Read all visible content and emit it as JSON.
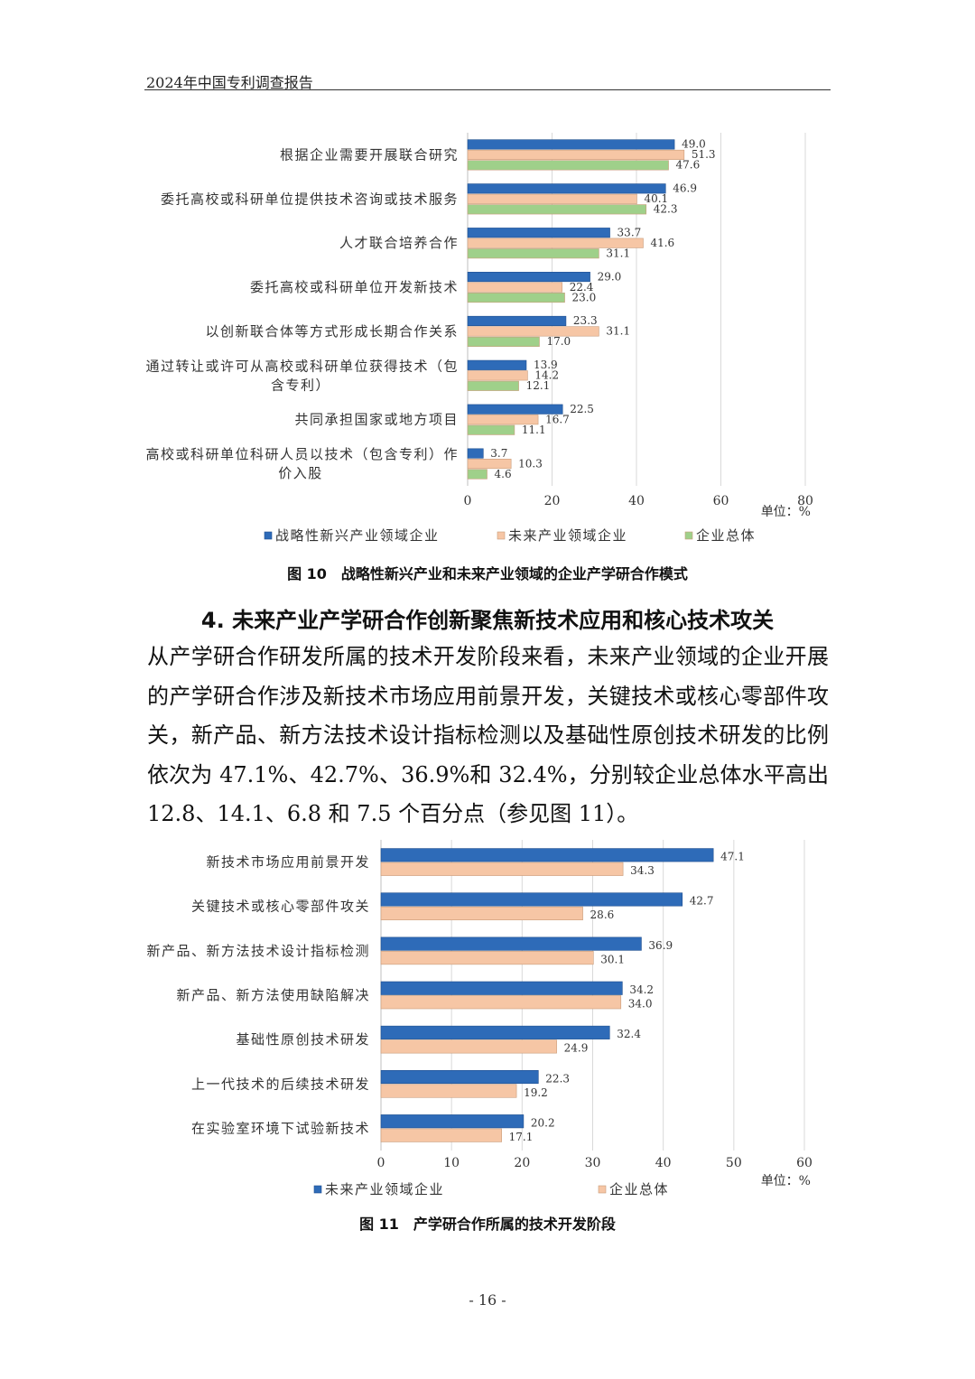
{
  "header": {
    "title": "2024年中国专利调查报告"
  },
  "figure10": {
    "caption": "图 10　战略性新兴产业和未来产业领域的企业产学研合作模式",
    "unit": "单位：%",
    "chart_data": {
      "type": "bar",
      "orientation": "horizontal",
      "categories": [
        [
          "根据企业需要开展联合研究"
        ],
        [
          "委托高校或科研单位提供技术咨询或技术服务"
        ],
        [
          "人才联合培养合作"
        ],
        [
          "委托高校或科研单位开发新技术"
        ],
        [
          "以创新联合体等方式形成长期合作关系"
        ],
        [
          "通过转让或许可从高校或科研单位获得技术（包",
          "含专利）"
        ],
        [
          "共同承担国家或地方项目"
        ],
        [
          "高校或科研单位科研人员以技术（包含专利）作",
          "价入股"
        ]
      ],
      "series": [
        {
          "name": "战略性新兴产业领域企业",
          "color": "#2e6bb8",
          "values": [
            49.0,
            46.9,
            33.7,
            29.0,
            23.3,
            13.9,
            22.5,
            3.7
          ]
        },
        {
          "name": "未来产业领域企业",
          "color": "#f6c6a5",
          "values": [
            51.3,
            40.1,
            41.6,
            22.4,
            31.1,
            14.2,
            16.7,
            10.3
          ]
        },
        {
          "name": "企业总体",
          "color": "#9fd08a",
          "values": [
            47.6,
            42.3,
            31.1,
            23.0,
            17.0,
            12.1,
            11.1,
            4.6
          ]
        }
      ],
      "xlim": [
        0,
        80
      ],
      "xticks": [
        0,
        20,
        40,
        60,
        80
      ],
      "grid": true,
      "legend": "bottom"
    }
  },
  "section": {
    "heading": "4. 未来产业产学研合作创新聚焦新技术应用和核心技术攻关",
    "paragraph": "从产学研合作研发所属的技术开发阶段来看，未来产业领域的企业开展的产学研合作涉及新技术市场应用前景开发，关键技术或核心零部件攻关，新产品、新方法技术设计指标检测以及基础性原创技术研发的比例依次为 47.1%、42.7%、36.9%和 32.4%，分别较企业总体水平高出 12.8、14.1、6.8 和 7.5 个百分点（参见图 11）。"
  },
  "figure11": {
    "caption": "图 11　产学研合作所属的技术开发阶段",
    "unit": "单位：%",
    "chart_data": {
      "type": "bar",
      "orientation": "horizontal",
      "categories": [
        [
          "新技术市场应用前景开发"
        ],
        [
          "关键技术或核心零部件攻关"
        ],
        [
          "新产品、新方法技术设计指标检测"
        ],
        [
          "新产品、新方法使用缺陷解决"
        ],
        [
          "基础性原创技术研发"
        ],
        [
          "上一代技术的后续技术研发"
        ],
        [
          "在实验室环境下试验新技术"
        ]
      ],
      "series": [
        {
          "name": "未来产业领域企业",
          "color": "#2e6bb8",
          "values": [
            47.1,
            42.7,
            36.9,
            34.2,
            32.4,
            22.3,
            20.2
          ]
        },
        {
          "name": "企业总体",
          "color": "#f6c6a5",
          "values": [
            34.3,
            28.6,
            30.1,
            34.0,
            24.9,
            19.2,
            17.1
          ]
        }
      ],
      "xlim": [
        0,
        60
      ],
      "xticks": [
        0,
        10,
        20,
        30,
        40,
        50,
        60
      ],
      "grid": true,
      "legend": "bottom"
    }
  },
  "footer": {
    "page": "- 16 -"
  }
}
